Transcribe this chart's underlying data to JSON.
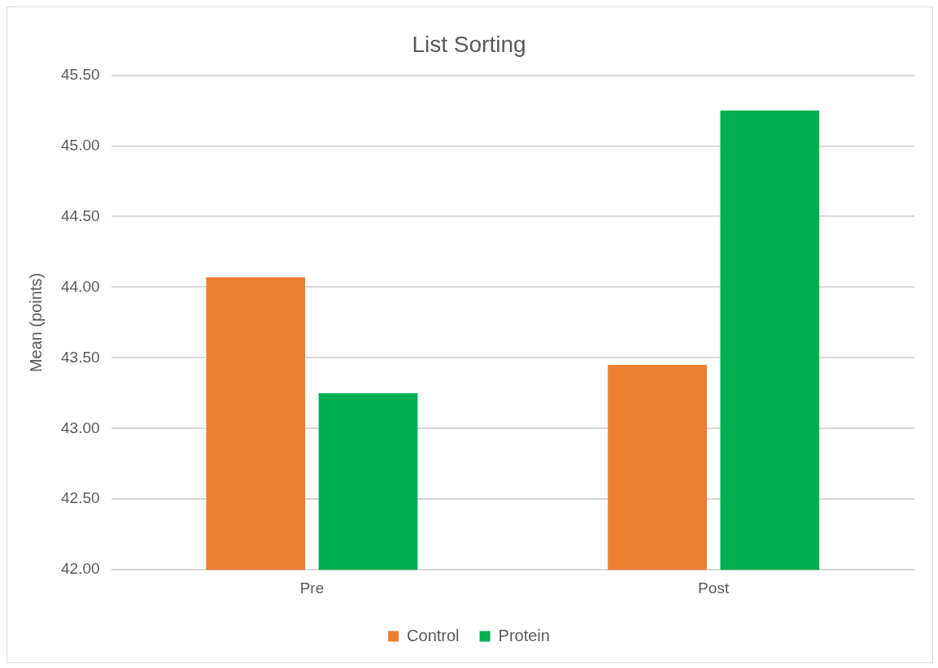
{
  "chart_data": {
    "type": "bar",
    "title": "List Sorting",
    "ylabel": "Mean (points)",
    "categories": [
      "Pre",
      "Post"
    ],
    "series": [
      {
        "name": "Control",
        "color": "#ed7d31",
        "values": [
          44.07,
          43.45
        ]
      },
      {
        "name": "Protein",
        "color": "#00b050",
        "values": [
          43.25,
          45.25
        ]
      }
    ],
    "ylim": [
      42,
      45.5
    ],
    "yticks": [
      {
        "value": 42,
        "label": "42.00"
      },
      {
        "value": 42.5,
        "label": "42.50"
      },
      {
        "value": 43,
        "label": "43.00"
      },
      {
        "value": 43.5,
        "label": "43.50"
      },
      {
        "value": 44,
        "label": "44.00"
      },
      {
        "value": 44.5,
        "label": "44.50"
      },
      {
        "value": 45,
        "label": "45.00"
      },
      {
        "value": 45.5,
        "label": "45.50"
      }
    ],
    "grid": "y",
    "legend": "bottom"
  }
}
